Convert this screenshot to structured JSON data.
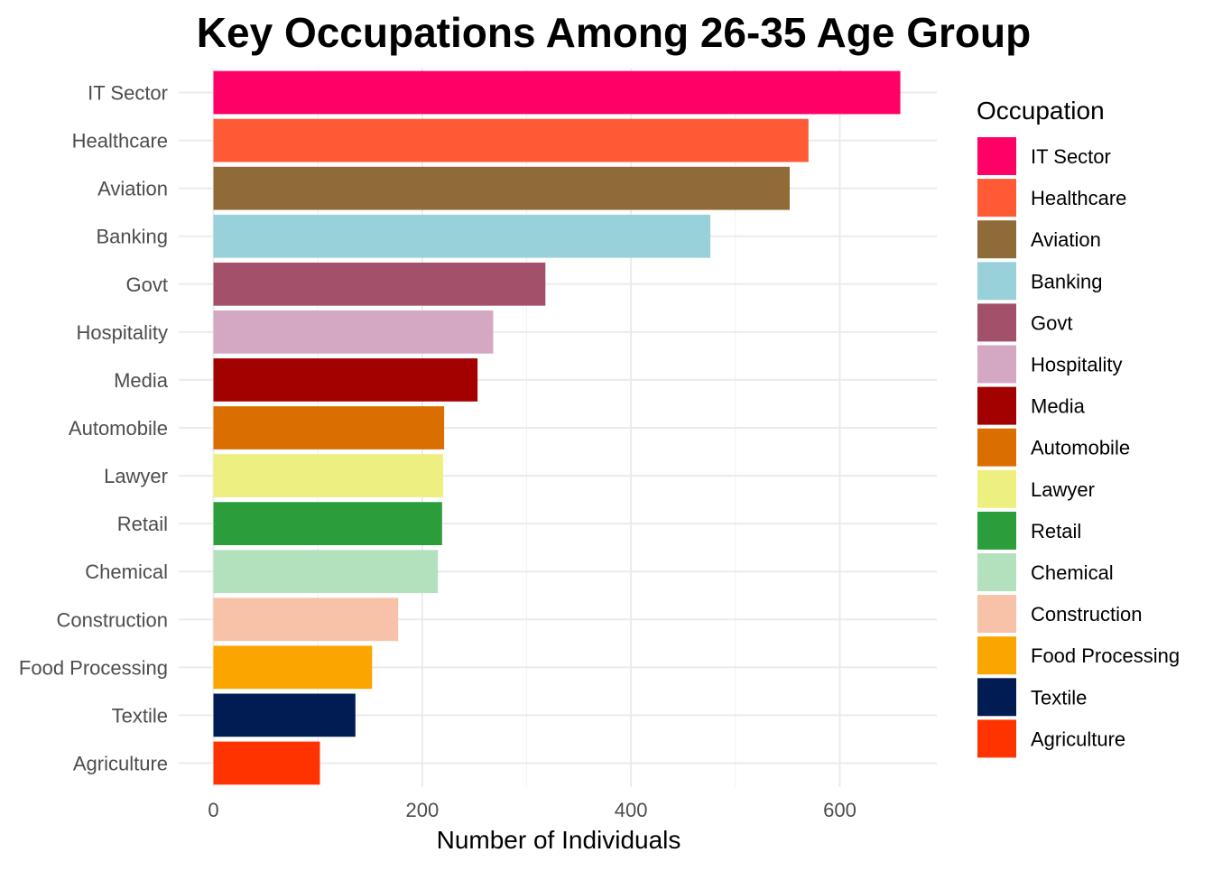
{
  "chart_data": {
    "type": "bar",
    "orientation": "horizontal",
    "title": "Key Occupations Among 26-35 Age Group",
    "xlabel": "Number of Individuals",
    "ylabel": "",
    "xlim": [
      0,
      690
    ],
    "xticks": [
      0,
      200,
      400,
      600
    ],
    "grid": true,
    "legend": {
      "title": "Occupation",
      "position": "right"
    },
    "categories": [
      "IT Sector",
      "Healthcare",
      "Aviation",
      "Banking",
      "Govt",
      "Hospitality",
      "Media",
      "Automobile",
      "Lawyer",
      "Retail",
      "Chemical",
      "Construction",
      "Food Processing",
      "Textile",
      "Agriculture"
    ],
    "values": [
      658,
      570,
      552,
      476,
      318,
      268,
      253,
      221,
      220,
      219,
      215,
      177,
      152,
      136,
      102
    ],
    "colors": [
      "#ff0066",
      "#ff5a36",
      "#8f6b37",
      "#99d1db",
      "#a3506b",
      "#d4a8c3",
      "#a30000",
      "#db6e00",
      "#edf080",
      "#2b9e3b",
      "#b3e0bd",
      "#f7c2a8",
      "#faa500",
      "#001c52",
      "#ff3300"
    ]
  }
}
